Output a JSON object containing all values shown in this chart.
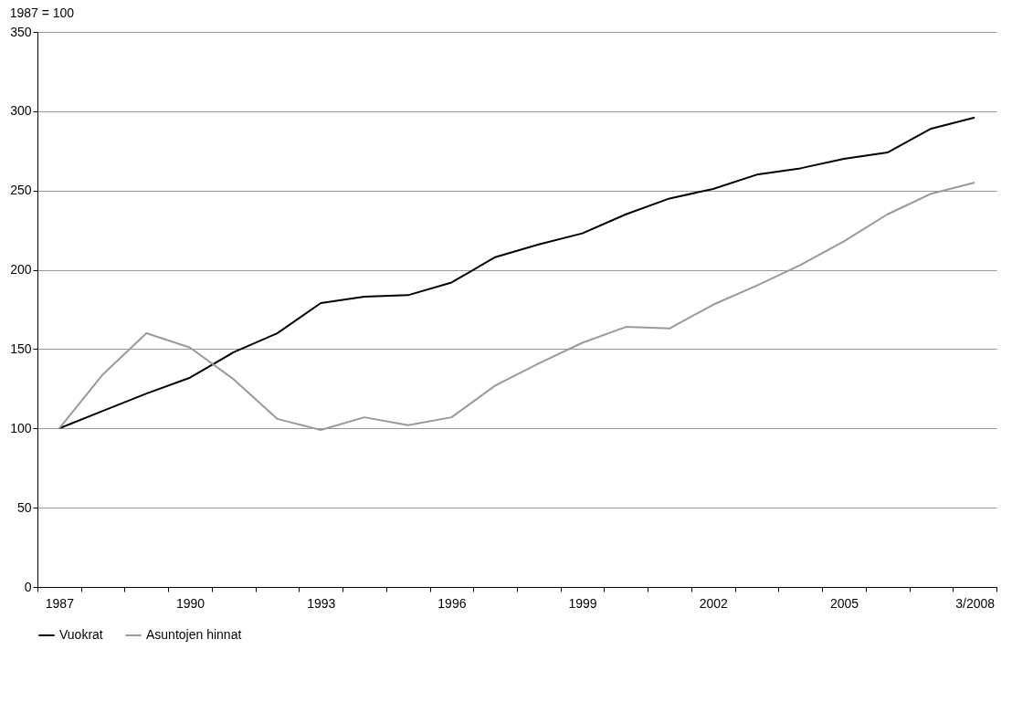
{
  "chart_data": {
    "type": "line",
    "annotations": [
      "1987 = 100"
    ],
    "categories": [
      "1987",
      null,
      null,
      "1990",
      null,
      null,
      "1993",
      null,
      null,
      "1996",
      null,
      null,
      "1999",
      null,
      null,
      "2002",
      null,
      null,
      "2005",
      null,
      null,
      "3/2008"
    ],
    "series": [
      {
        "name": "Vuokrat",
        "color": "#000000",
        "values": [
          100,
          111,
          122,
          132,
          148,
          160,
          179,
          183,
          184,
          192,
          208,
          216,
          223,
          235,
          245,
          251,
          260,
          264,
          270,
          274,
          289,
          296
        ]
      },
      {
        "name": "Asuntojen hinnat",
        "color": "#999999",
        "values": [
          100,
          134,
          160,
          151,
          131,
          106,
          99,
          107,
          102,
          107,
          127,
          141,
          154,
          164,
          163,
          178,
          190,
          203,
          218,
          235,
          248,
          255
        ]
      }
    ],
    "ylim": [
      0,
      350
    ],
    "yticks": [
      0,
      50,
      100,
      150,
      200,
      250,
      300,
      350
    ],
    "grid": "y",
    "legend": "bottom",
    "marker": "none",
    "line_style": "solid"
  }
}
